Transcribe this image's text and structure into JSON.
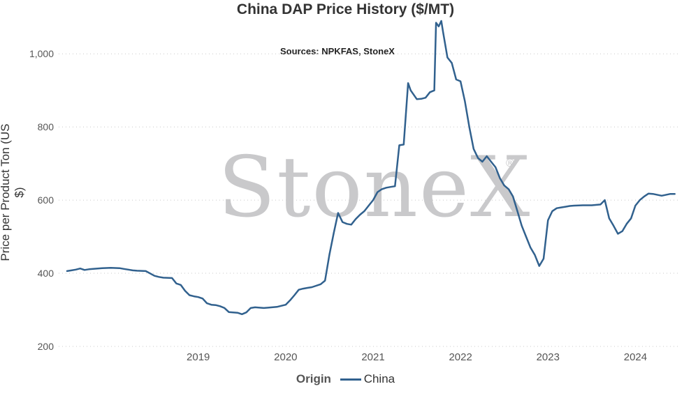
{
  "chart_data": {
    "type": "line",
    "title": "China DAP Price History ($/MT)",
    "subtitle": "Sources: NPKFAS, StoneX",
    "xlabel": "",
    "ylabel": "Price per Product Ton (US $)",
    "watermark": "StoneX",
    "watermark_mark": "®",
    "ylim": [
      200,
      1090
    ],
    "yticks": [
      200,
      400,
      600,
      800,
      1000
    ],
    "ytick_labels": [
      "200",
      "400",
      "600",
      "800",
      "1,000"
    ],
    "xlim": [
      2018.0,
      2025.0
    ],
    "xticks": [
      2019,
      2020,
      2021,
      2022,
      2023,
      2024
    ],
    "xtick_labels": [
      "2019",
      "2020",
      "2021",
      "2022",
      "2023",
      "2024"
    ],
    "grid": "horizontal dotted",
    "legend": {
      "title": "Origin",
      "position": "bottom-center"
    },
    "series": [
      {
        "name": "China",
        "color": "#31618e",
        "x": [
          2018.0,
          2018.05,
          2018.1,
          2018.15,
          2018.2,
          2018.25,
          2018.3,
          2018.4,
          2018.5,
          2018.6,
          2018.65,
          2018.7,
          2018.75,
          2018.8,
          2018.9,
          2019.0,
          2019.05,
          2019.1,
          2019.2,
          2019.25,
          2019.3,
          2019.35,
          2019.4,
          2019.45,
          2019.5,
          2019.55,
          2019.6,
          2019.65,
          2019.7,
          2019.75,
          2019.8,
          2019.85,
          2019.95,
          2020.0,
          2020.05,
          2020.1,
          2020.15,
          2020.2,
          2020.25,
          2020.3,
          2020.4,
          2020.5,
          2020.55,
          2020.6,
          2020.65,
          2020.7,
          2020.75,
          2020.8,
          2020.9,
          2020.95,
          2021.0,
          2021.05,
          2021.1,
          2021.15,
          2021.2,
          2021.25,
          2021.3,
          2021.35,
          2021.4,
          2021.45,
          2021.5,
          2021.55,
          2021.6,
          2021.65,
          2021.7,
          2021.75,
          2021.8,
          2021.85,
          2021.9,
          2021.93,
          2022.0,
          2022.05,
          2022.1,
          2022.15,
          2022.2,
          2022.22,
          2022.25,
          2022.28,
          2022.3,
          2022.35,
          2022.4,
          2022.45,
          2022.5,
          2022.55,
          2022.6,
          2022.65,
          2022.7,
          2022.75,
          2022.8,
          2022.85,
          2022.9,
          2022.95,
          2023.0,
          2023.05,
          2023.1,
          2023.15,
          2023.2,
          2023.25,
          2023.3,
          2023.35,
          2023.4,
          2023.45,
          2023.5,
          2023.55,
          2023.6,
          2023.65,
          2023.7,
          2023.75,
          2023.8,
          2023.9,
          2024.0,
          2024.1,
          2024.15,
          2024.2,
          2024.25,
          2024.3,
          2024.35,
          2024.4,
          2024.45,
          2024.5,
          2024.55,
          2024.6,
          2024.65,
          2024.7,
          2024.8,
          2024.9,
          2024.95
        ],
        "values": [
          406,
          408,
          410,
          413,
          409,
          411,
          412,
          414,
          415,
          414,
          412,
          410,
          408,
          407,
          406,
          393,
          390,
          388,
          387,
          372,
          368,
          352,
          340,
          337,
          335,
          331,
          318,
          314,
          313,
          310,
          305,
          294,
          292,
          288,
          293,
          305,
          307,
          306,
          305,
          306,
          308,
          314,
          326,
          340,
          355,
          358,
          360,
          362,
          370,
          380,
          450,
          510,
          565,
          540,
          535,
          533,
          548,
          560,
          570,
          585,
          600,
          622,
          630,
          634,
          636,
          638,
          750,
          752,
          920,
          900,
          876,
          877,
          880,
          895,
          900,
          1085,
          1075,
          1090,
          1060,
          990,
          975,
          930,
          925,
          870,
          800,
          740,
          715,
          705,
          720,
          705,
          690,
          660,
          640,
          630,
          610,
          570,
          530,
          500,
          470,
          450,
          420,
          440,
          545,
          570,
          578,
          580,
          582,
          584,
          585,
          586,
          586,
          588,
          600,
          550,
          530,
          508,
          515,
          535,
          550,
          585,
          600,
          610,
          618,
          617,
          612,
          617,
          617
        ]
      }
    ]
  }
}
